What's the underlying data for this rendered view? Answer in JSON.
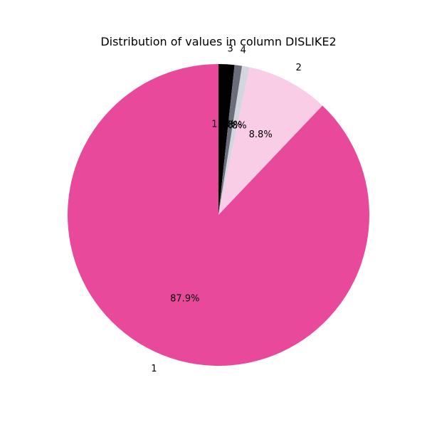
{
  "chart_data": {
    "type": "pie",
    "title": "Distribution of values in column DISLIKE2",
    "start_angle_deg": 90,
    "direction": "clockwise",
    "slices": [
      {
        "label": "3",
        "value": 1.7,
        "pct_text": "1.7%",
        "color": "#000000"
      },
      {
        "label": "4",
        "value": 0.8,
        "pct_text": "0.8%",
        "color": "#6b6e7a"
      },
      {
        "label": "",
        "value": 0.8,
        "pct_text": "0.8%",
        "color": "#d3d6df"
      },
      {
        "label": "2",
        "value": 8.8,
        "pct_text": "8.8%",
        "color": "#f9cde6"
      },
      {
        "label": "1",
        "value": 87.9,
        "pct_text": "87.9%",
        "color": "#e9499b"
      }
    ]
  }
}
